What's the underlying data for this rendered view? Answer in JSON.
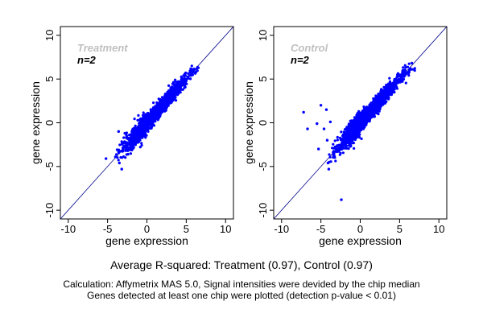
{
  "colors": {
    "points": "#0000ff",
    "diagonal": "#00008b",
    "group_label": "#c0c0c0",
    "axis": "#000000"
  },
  "summary": "Average R-squared: Treatment (0.97), Control (0.97)",
  "notes": [
    "Calculation: Affymetrix MAS 5.0, Signal intensities were devided by the chip median",
    "Genes detected at least one chip were plotted (detection p-value < 0.01)"
  ],
  "chart_data": [
    {
      "type": "scatter",
      "group_label": "Treatment",
      "n_label": "n=2",
      "xlabel": "gene expression",
      "ylabel": "gene expression",
      "xlim": [
        -11,
        11
      ],
      "ylim": [
        -11,
        11
      ],
      "xticks": [
        -10,
        -5,
        0,
        5,
        10
      ],
      "yticks": [
        -10,
        -5,
        0,
        5,
        10
      ],
      "xtick_labels": [
        "-10",
        "-5",
        "0",
        "5",
        "10"
      ],
      "ytick_labels": [
        "-10",
        "-5",
        "0",
        "5",
        "10"
      ],
      "reference_line": "y = x",
      "outliers": [
        [
          -5.2,
          -4.1
        ],
        [
          -3.2,
          -5.3
        ],
        [
          -3.5,
          -4.6
        ],
        [
          -4.0,
          -3.9
        ],
        [
          -2.8,
          -1.2
        ],
        [
          -3.6,
          -1.0
        ],
        [
          -2.4,
          -3.6
        ]
      ],
      "cloud": {
        "x_range": [
          -4,
          7.5
        ],
        "center_y_equals_x": true,
        "spread": 0.6
      }
    },
    {
      "type": "scatter",
      "group_label": "Control",
      "n_label": "n=2",
      "xlabel": "gene expression",
      "ylabel": "gene expression",
      "xlim": [
        -11,
        11
      ],
      "ylim": [
        -11,
        11
      ],
      "xticks": [
        -10,
        -5,
        0,
        5,
        10
      ],
      "yticks": [
        -10,
        -5,
        0,
        5,
        10
      ],
      "xtick_labels": [
        "-10",
        "-5",
        "0",
        "5",
        "10"
      ],
      "ytick_labels": [
        "-10",
        "-5",
        "0",
        "5",
        "10"
      ],
      "reference_line": "y = x",
      "outliers": [
        [
          -7.2,
          1.2
        ],
        [
          -5.0,
          2.0
        ],
        [
          -4.3,
          1.5
        ],
        [
          -6.7,
          -0.7
        ],
        [
          -4.6,
          -0.7
        ],
        [
          -2.4,
          -8.8
        ],
        [
          -4.1,
          -4.6
        ],
        [
          -4.0,
          -5.3
        ],
        [
          -3.8,
          0.1
        ],
        [
          -5.3,
          -3.0
        ],
        [
          -4.2,
          -2.0
        ],
        [
          -5.5,
          -0.1
        ]
      ],
      "cloud": {
        "x_range": [
          -4,
          7.5
        ],
        "center_y_equals_x": true,
        "spread": 0.65
      }
    }
  ]
}
